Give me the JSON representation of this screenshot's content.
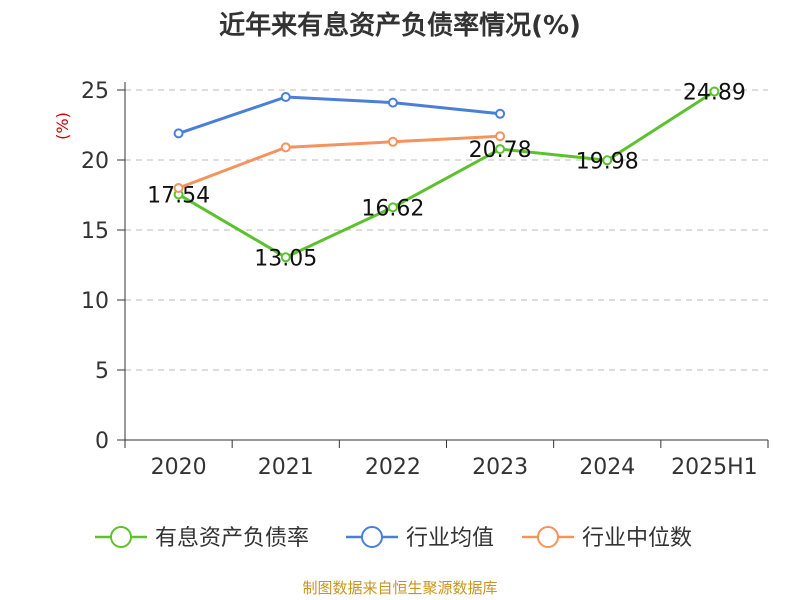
{
  "chart_data": {
    "type": "line",
    "title": "近年来有息资产负债率情况(%)",
    "ylabel": "(%)",
    "xlabel": "",
    "categories": [
      "2020",
      "2021",
      "2022",
      "2023",
      "2024",
      "2025H1"
    ],
    "ylim": [
      0,
      25
    ],
    "yticks": [
      0,
      5,
      10,
      15,
      20,
      25
    ],
    "grid": "horizontal dashed",
    "legend_position": "bottom",
    "series": [
      {
        "name": "有息资产负债率",
        "color": "#5cc12d",
        "values": [
          17.54,
          13.05,
          16.62,
          20.78,
          19.98,
          24.89
        ],
        "labels": [
          "17.54",
          "13.05",
          "16.62",
          "20.78",
          "19.98",
          "24.89"
        ]
      },
      {
        "name": "行业均值",
        "color": "#4a7fd8",
        "values": [
          21.9,
          24.5,
          24.1,
          23.3,
          null,
          null
        ]
      },
      {
        "name": "行业中位数",
        "color": "#f5935c",
        "values": [
          18.0,
          20.9,
          21.3,
          21.7,
          null,
          null
        ]
      }
    ]
  },
  "source": "制图数据来自恒生聚源数据库"
}
